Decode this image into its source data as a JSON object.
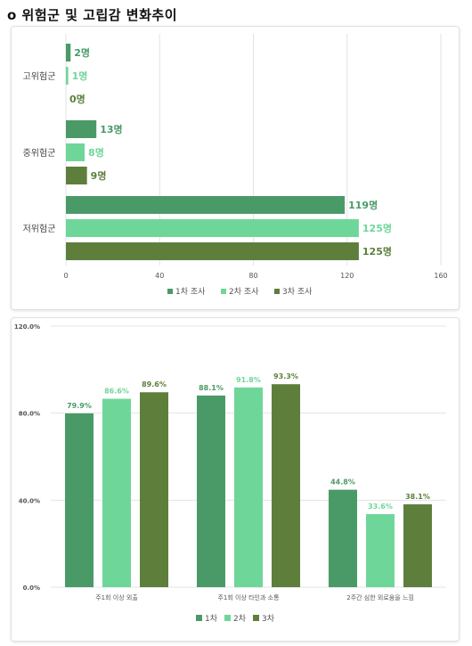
{
  "page_title": "o 위험군 및 고립감 변화추이",
  "colors": {
    "s1": "#4a9a68",
    "s2": "#6fd69a",
    "s3": "#5e7f3c",
    "grid": "#e3e3e3",
    "text": "#555555"
  },
  "chart_data": [
    {
      "type": "bar",
      "orientation": "horizontal",
      "categories": [
        "고위험군",
        "중위험군",
        "저위험군"
      ],
      "series": [
        {
          "name": "1차 조사",
          "values": [
            2,
            13,
            119
          ],
          "labels": [
            "2명",
            "13명",
            "119명"
          ]
        },
        {
          "name": "2차 조사",
          "values": [
            1,
            8,
            125
          ],
          "labels": [
            "1명",
            "8명",
            "125명"
          ]
        },
        {
          "name": "3차 조사",
          "values": [
            0,
            9,
            125
          ],
          "labels": [
            "0명",
            "9명",
            "125명"
          ]
        }
      ],
      "xlim": [
        0,
        160
      ],
      "xticks": [
        "0",
        "40",
        "80",
        "120",
        "160"
      ],
      "grid": true,
      "legend": "bottom"
    },
    {
      "type": "bar",
      "categories": [
        "주1회 이상 외출",
        "주1회 이상 타인과 소통",
        "2주간 심한 외로움을 느낌"
      ],
      "series": [
        {
          "name": "1차",
          "values": [
            79.9,
            88.1,
            44.8
          ],
          "labels": [
            "79.9%",
            "88.1%",
            "44.8%"
          ]
        },
        {
          "name": "2차",
          "values": [
            86.6,
            91.8,
            33.6
          ],
          "labels": [
            "86.6%",
            "91.8%",
            "33.6%"
          ]
        },
        {
          "name": "3차",
          "values": [
            89.6,
            93.3,
            38.1
          ],
          "labels": [
            "89.6%",
            "93.3%",
            "38.1%"
          ]
        }
      ],
      "ylim": [
        0,
        120
      ],
      "yticks": [
        "0.0%",
        "40.0%",
        "80.0%",
        "120.0%"
      ],
      "grid": true,
      "legend": "bottom"
    }
  ]
}
